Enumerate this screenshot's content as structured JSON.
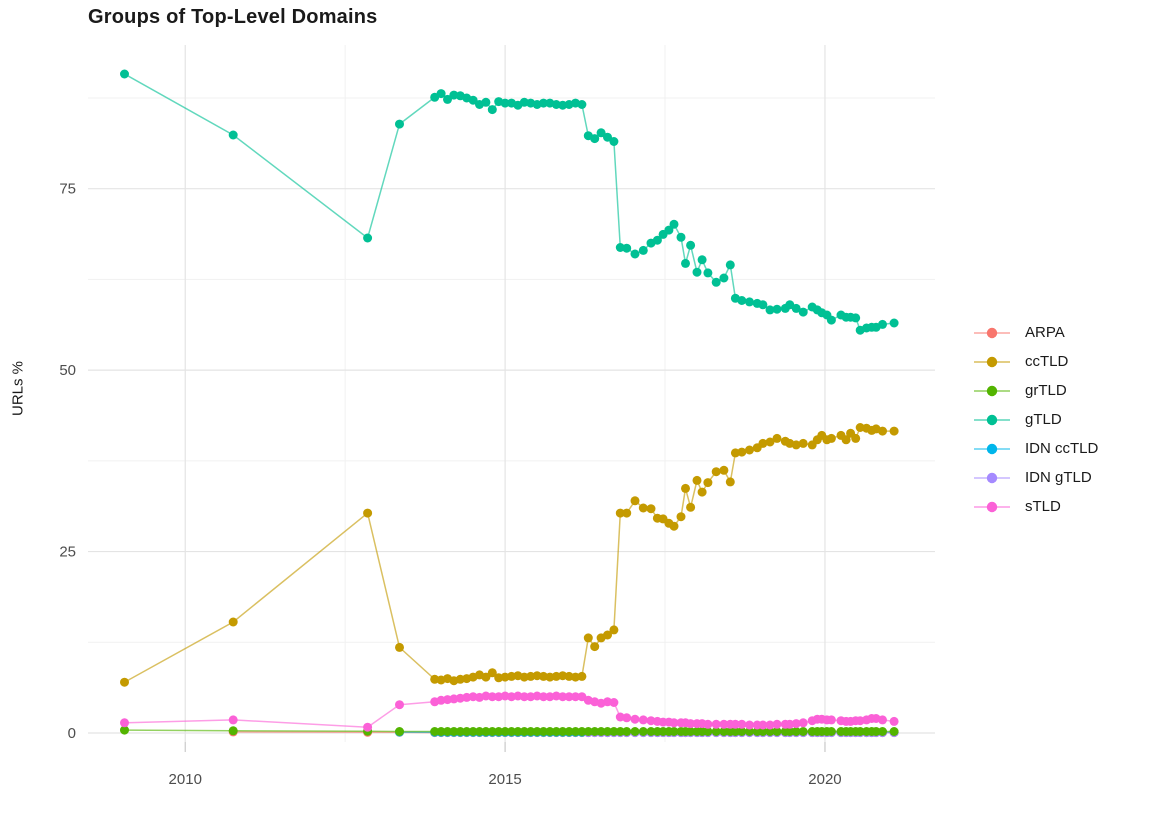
{
  "title": "Groups of Top-Level Domains",
  "chart_data": {
    "type": "line",
    "title": "Groups of Top-Level Domains",
    "xlabel": "",
    "ylabel": "URLs %",
    "xlim": [
      2008.48,
      2021.72
    ],
    "ylim": [
      -1.24,
      94.8
    ],
    "x_ticks_major": [
      2010,
      2015,
      2020
    ],
    "x_ticks_minor": [
      2012.5,
      2017.5
    ],
    "y_ticks_major": [
      0,
      25,
      50,
      75
    ],
    "y_ticks_minor": [
      12.5,
      37.5,
      62.5,
      87.5
    ],
    "x_tick_labels": [
      "2010",
      "2015",
      "2020"
    ],
    "y_tick_labels": [
      "0",
      "25",
      "50",
      "75"
    ],
    "grid": "on",
    "legend_position": "right",
    "background": "#ffffff",
    "grid_major_color": "#e4e4e4",
    "grid_minor_color": "#f1f1f1",
    "tick_label_color": "#4d4d4d",
    "dense_years": [
      2013.9,
      2014.0,
      2014.1,
      2014.2,
      2014.3,
      2014.4,
      2014.5,
      2014.6,
      2014.7,
      2014.8,
      2014.9,
      2015.0,
      2015.1,
      2015.2,
      2015.3,
      2015.4,
      2015.5,
      2015.6,
      2015.7,
      2015.8,
      2015.9,
      2016.0,
      2016.1,
      2016.2,
      2016.3,
      2016.4,
      2016.5,
      2016.6,
      2016.7,
      2016.8,
      2016.9,
      2017.03,
      2017.16,
      2017.28,
      2017.38,
      2017.47,
      2017.56,
      2017.64,
      2017.75,
      2017.82,
      2017.9,
      2018.0,
      2018.08,
      2018.17,
      2018.3,
      2018.42,
      2018.52,
      2018.6,
      2018.7,
      2018.82,
      2018.94,
      2019.03,
      2019.14,
      2019.25,
      2019.38,
      2019.45,
      2019.55,
      2019.66,
      2019.8,
      2019.88,
      2019.95,
      2020.03,
      2020.1,
      2020.25,
      2020.33,
      2020.4,
      2020.48,
      2020.55,
      2020.65,
      2020.73,
      2020.8,
      2020.9,
      2021.08
    ],
    "draw_sequence": [
      0,
      4,
      5,
      2,
      1,
      3,
      6
    ],
    "series": [
      {
        "name": "ARPA",
        "color": "#F8766D",
        "early": [
          [
            2010.75,
            0.15
          ],
          [
            2012.85,
            0.1
          ],
          [
            2013.35,
            0.1
          ]
        ],
        "dense_start_index": 0,
        "flat_value": 0.05
      },
      {
        "name": "ccTLD",
        "color": "#C49A00",
        "early": [
          [
            2009.05,
            7.0
          ],
          [
            2010.75,
            15.3
          ],
          [
            2012.85,
            30.3
          ],
          [
            2013.35,
            11.8
          ]
        ],
        "dense_start_index": 0,
        "dense_values": [
          7.4,
          7.3,
          7.5,
          7.2,
          7.4,
          7.5,
          7.7,
          8.0,
          7.7,
          8.3,
          7.6,
          7.7,
          7.8,
          7.9,
          7.7,
          7.8,
          7.9,
          7.8,
          7.7,
          7.8,
          7.9,
          7.8,
          7.7,
          7.8,
          13.1,
          11.9,
          13.1,
          13.5,
          14.2,
          30.3,
          30.3,
          32.0,
          31.0,
          30.9,
          29.6,
          29.5,
          28.9,
          28.5,
          29.8,
          33.7,
          31.1,
          34.8,
          33.2,
          34.5,
          36.0,
          36.2,
          34.6,
          38.6,
          38.7,
          39.0,
          39.3,
          39.9,
          40.1,
          40.6,
          40.2,
          39.9,
          39.7,
          39.9,
          39.7,
          40.4,
          41.0,
          40.4,
          40.6,
          41.0,
          40.4,
          41.3,
          40.6,
          42.1,
          42.0,
          41.7,
          41.9,
          41.6,
          41.6
        ]
      },
      {
        "name": "grTLD",
        "color": "#53B400",
        "early": [
          [
            2009.05,
            0.4
          ],
          [
            2010.75,
            0.3
          ],
          [
            2012.85,
            0.25
          ],
          [
            2013.35,
            0.2
          ]
        ],
        "dense_start_index": 0,
        "flat_value": 0.2
      },
      {
        "name": "gTLD",
        "color": "#00C094",
        "early": [
          [
            2009.05,
            90.8
          ],
          [
            2010.75,
            82.4
          ],
          [
            2012.85,
            68.2
          ],
          [
            2013.35,
            83.9
          ]
        ],
        "dense_start_index": 0,
        "dense_values": [
          87.6,
          88.1,
          87.3,
          87.9,
          87.8,
          87.5,
          87.2,
          86.6,
          86.9,
          85.9,
          87.0,
          86.8,
          86.8,
          86.5,
          86.9,
          86.8,
          86.6,
          86.8,
          86.8,
          86.6,
          86.5,
          86.6,
          86.8,
          86.6,
          82.3,
          81.9,
          82.7,
          82.1,
          81.5,
          66.9,
          66.8,
          66.0,
          66.5,
          67.5,
          67.9,
          68.7,
          69.3,
          70.1,
          68.3,
          64.7,
          67.2,
          63.5,
          65.2,
          63.4,
          62.1,
          62.7,
          64.5,
          59.9,
          59.6,
          59.4,
          59.2,
          59.0,
          58.3,
          58.4,
          58.5,
          59.0,
          58.5,
          58.0,
          58.7,
          58.3,
          57.9,
          57.6,
          56.9,
          57.6,
          57.3,
          57.3,
          57.2,
          55.5,
          55.8,
          55.9,
          55.9,
          56.3,
          56.5
        ]
      },
      {
        "name": "IDN ccTLD",
        "color": "#00B6EB",
        "early": [
          [
            2013.35,
            0.12
          ]
        ],
        "dense_start_index": 0,
        "flat_value": 0.1
      },
      {
        "name": "IDN gTLD",
        "color": "#A58AFF",
        "early": [],
        "dense_start_index": 24,
        "flat_value": 0.05
      },
      {
        "name": "sTLD",
        "color": "#FB61D7",
        "early": [
          [
            2009.05,
            1.4
          ],
          [
            2010.75,
            1.8
          ],
          [
            2012.85,
            0.8
          ],
          [
            2013.35,
            3.9
          ]
        ],
        "dense_start_index": 0,
        "dense_values": [
          4.3,
          4.5,
          4.6,
          4.7,
          4.8,
          4.9,
          5.0,
          4.9,
          5.1,
          5.0,
          5.0,
          5.1,
          5.0,
          5.1,
          5.0,
          5.0,
          5.1,
          5.0,
          5.0,
          5.1,
          5.0,
          5.0,
          5.0,
          5.0,
          4.5,
          4.3,
          4.1,
          4.3,
          4.2,
          2.2,
          2.1,
          1.9,
          1.8,
          1.7,
          1.6,
          1.5,
          1.5,
          1.4,
          1.4,
          1.4,
          1.3,
          1.3,
          1.3,
          1.2,
          1.2,
          1.2,
          1.2,
          1.2,
          1.2,
          1.1,
          1.1,
          1.1,
          1.1,
          1.2,
          1.2,
          1.2,
          1.3,
          1.4,
          1.7,
          1.9,
          1.9,
          1.8,
          1.8,
          1.7,
          1.6,
          1.6,
          1.7,
          1.7,
          1.8,
          2.0,
          2.0,
          1.8,
          1.6
        ]
      }
    ]
  }
}
